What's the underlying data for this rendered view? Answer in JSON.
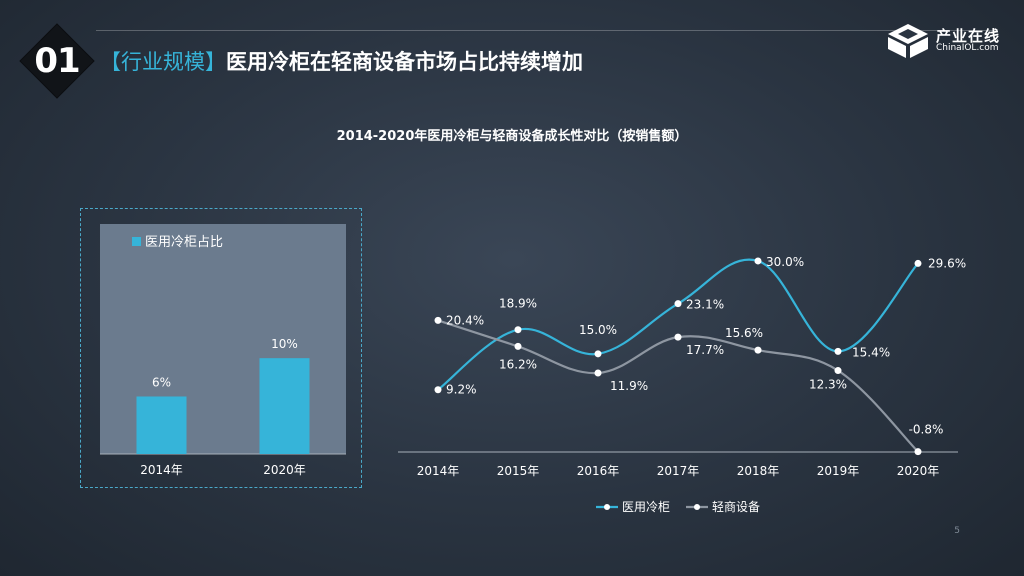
{
  "header": {
    "section_number": "01",
    "tag": "【行业规模】",
    "title": "医用冷柜在轻商设备市场占比持续增加"
  },
  "logo": {
    "name_cn": "产业在线",
    "name_en": "ChinaIOL.com"
  },
  "chart_title": "2014-2020年医用冷柜与轻商设备成长性对比（按销售额）",
  "page_number": "5",
  "colors": {
    "accent": "#36b4d9",
    "series_gray": "#8e96a1",
    "bar_panel": "#6b7b8e"
  },
  "chart_data": [
    {
      "type": "bar",
      "legend": "医用冷柜占比",
      "categories": [
        "2014年",
        "2020年"
      ],
      "values": [
        6,
        10
      ],
      "labels": [
        "6%",
        "10%"
      ],
      "ylim": [
        0,
        24
      ]
    },
    {
      "type": "line",
      "categories": [
        "2014年",
        "2015年",
        "2016年",
        "2017年",
        "2018年",
        "2019年",
        "2020年"
      ],
      "ylim": [
        -1.5,
        35
      ],
      "series": [
        {
          "name": "医用冷柜",
          "values": [
            9.2,
            18.9,
            15.0,
            23.1,
            30.0,
            15.4,
            29.6
          ],
          "labels": [
            "9.2%",
            "18.9%",
            "15.0%",
            "23.1%",
            "30.0%",
            "15.4%",
            "29.6%"
          ]
        },
        {
          "name": "轻商设备",
          "values": [
            20.4,
            16.2,
            11.9,
            17.7,
            15.6,
            12.3,
            -0.8
          ],
          "labels": [
            "20.4%",
            "16.2%",
            "11.9%",
            "17.7%",
            "15.6%",
            "12.3%",
            "-0.8%"
          ]
        }
      ]
    }
  ]
}
